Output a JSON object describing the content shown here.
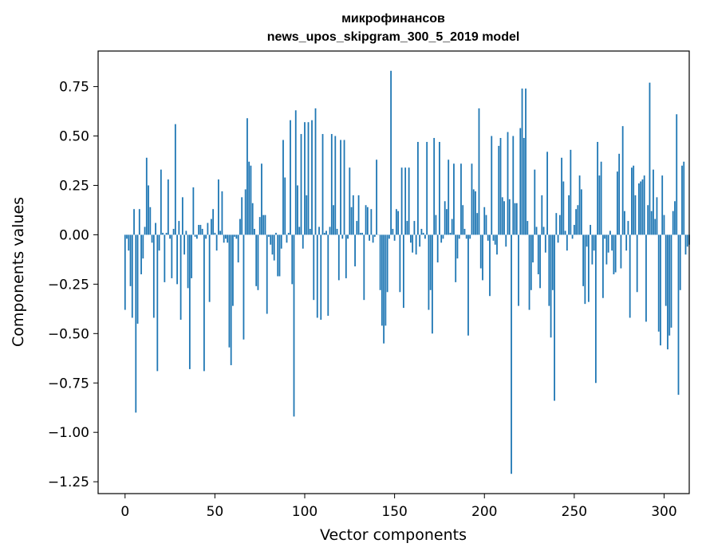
{
  "chart_data": {
    "type": "bar",
    "title": "микрофинансов",
    "subtitle": "news_upos_skipgram_300_5_2019 model",
    "xlabel": "Vector components",
    "ylabel": "Components values",
    "xlim": [
      -15,
      314
    ],
    "ylim": [
      -1.31,
      0.93
    ],
    "grid": false,
    "legend": "none",
    "bar_color": "#1f77b4",
    "x_ticks": [
      0,
      50,
      100,
      150,
      200,
      250,
      300
    ],
    "x_tick_labels": [
      "0",
      "50",
      "100",
      "150",
      "200",
      "250",
      "300"
    ],
    "y_ticks": [
      0.75,
      0.5,
      0.25,
      0.0,
      -0.25,
      -0.5,
      -0.75,
      -1.0,
      -1.25
    ],
    "y_tick_labels": [
      "0.75",
      "0.50",
      "0.25",
      "0.00",
      "−0.25",
      "−0.50",
      "−0.75",
      "−1.00",
      "−1.25"
    ],
    "values": [
      -0.38,
      -0.02,
      -0.08,
      -0.26,
      -0.42,
      0.13,
      -0.9,
      -0.45,
      0.13,
      -0.2,
      -0.12,
      0.04,
      0.39,
      0.25,
      0.14,
      -0.04,
      -0.42,
      0.06,
      -0.69,
      -0.08,
      0.33,
      0.01,
      -0.24,
      0.01,
      0.28,
      -0.02,
      -0.22,
      0.03,
      0.56,
      -0.25,
      0.07,
      -0.43,
      0.19,
      -0.1,
      0.02,
      -0.27,
      -0.68,
      -0.22,
      0.24,
      -0.01,
      -0.02,
      0.05,
      0.05,
      0.03,
      -0.69,
      -0.02,
      0.06,
      -0.34,
      0.08,
      0.13,
      0.01,
      -0.08,
      0.28,
      0.02,
      0.22,
      -0.04,
      -0.02,
      -0.04,
      -0.57,
      -0.66,
      -0.36,
      -0.01,
      -0.02,
      -0.14,
      0.08,
      0.19,
      -0.53,
      0.23,
      0.59,
      0.37,
      0.35,
      0.16,
      0.03,
      -0.26,
      -0.28,
      0.09,
      0.36,
      0.1,
      0.1,
      -0.4,
      -0.01,
      -0.05,
      -0.1,
      -0.13,
      0.01,
      -0.21,
      -0.21,
      -0.07,
      0.48,
      0.29,
      -0.04,
      0.01,
      0.58,
      -0.25,
      -0.92,
      0.63,
      0.25,
      0.04,
      0.51,
      -0.07,
      0.57,
      0.2,
      0.57,
      0.03,
      0.58,
      -0.33,
      0.64,
      -0.42,
      0.04,
      -0.43,
      0.51,
      0.01,
      0.02,
      -0.41,
      0.04,
      0.51,
      0.15,
      0.5,
      0.03,
      -0.23,
      0.48,
      -0.02,
      0.48,
      -0.22,
      -0.02,
      0.34,
      0.14,
      0.2,
      -0.16,
      0.07,
      0.2,
      0.01,
      0.01,
      -0.33,
      0.15,
      0.14,
      -0.03,
      0.13,
      -0.04,
      -0.01,
      0.38,
      0.0,
      -0.28,
      -0.46,
      -0.55,
      -0.46,
      -0.29,
      -0.02,
      0.83,
      0.03,
      -0.03,
      0.13,
      0.12,
      -0.29,
      0.34,
      -0.37,
      0.34,
      0.07,
      0.34,
      -0.04,
      -0.09,
      0.07,
      -0.1,
      0.47,
      -0.06,
      0.03,
      0.01,
      -0.02,
      0.47,
      -0.38,
      -0.28,
      -0.5,
      0.49,
      0.1,
      -0.14,
      0.47,
      -0.04,
      -0.02,
      0.17,
      0.13,
      0.38,
      0.01,
      0.08,
      0.36,
      -0.24,
      -0.12,
      -0.02,
      0.36,
      0.15,
      0.03,
      -0.02,
      -0.51,
      -0.02,
      0.36,
      0.23,
      0.22,
      0.11,
      0.64,
      -0.17,
      -0.23,
      0.14,
      0.1,
      -0.03,
      -0.31,
      0.5,
      -0.03,
      -0.05,
      -0.1,
      0.45,
      0.49,
      0.19,
      0.17,
      -0.06,
      0.52,
      0.18,
      -1.21,
      0.5,
      0.16,
      0.16,
      -0.36,
      0.54,
      0.74,
      0.49,
      0.74,
      0.07,
      -0.38,
      -0.28,
      -0.14,
      0.33,
      0.04,
      -0.2,
      -0.27,
      0.2,
      0.04,
      -0.09,
      0.42,
      -0.36,
      -0.52,
      -0.28,
      -0.84,
      0.11,
      -0.04,
      0.1,
      0.39,
      0.27,
      0.02,
      -0.08,
      0.2,
      0.43,
      -0.02,
      0.05,
      0.13,
      0.15,
      0.3,
      0.23,
      -0.26,
      -0.35,
      -0.06,
      -0.34,
      0.05,
      -0.15,
      -0.08,
      -0.75,
      0.47,
      0.3,
      0.37,
      -0.32,
      -0.02,
      -0.15,
      -0.09,
      0.02,
      -0.08,
      -0.2,
      -0.19,
      0.32,
      0.41,
      -0.17,
      0.55,
      0.12,
      -0.08,
      0.07,
      -0.42,
      0.34,
      0.35,
      0.2,
      -0.29,
      0.26,
      0.27,
      0.28,
      0.3,
      -0.44,
      0.15,
      0.77,
      0.12,
      0.33,
      0.08,
      0.19,
      -0.49,
      -0.56,
      0.3,
      0.1,
      -0.36,
      -0.58,
      -0.51,
      -0.47,
      0.12,
      0.17,
      0.61,
      -0.81,
      -0.28,
      0.35,
      0.37,
      -0.1,
      -0.06,
      -0.05
    ]
  }
}
